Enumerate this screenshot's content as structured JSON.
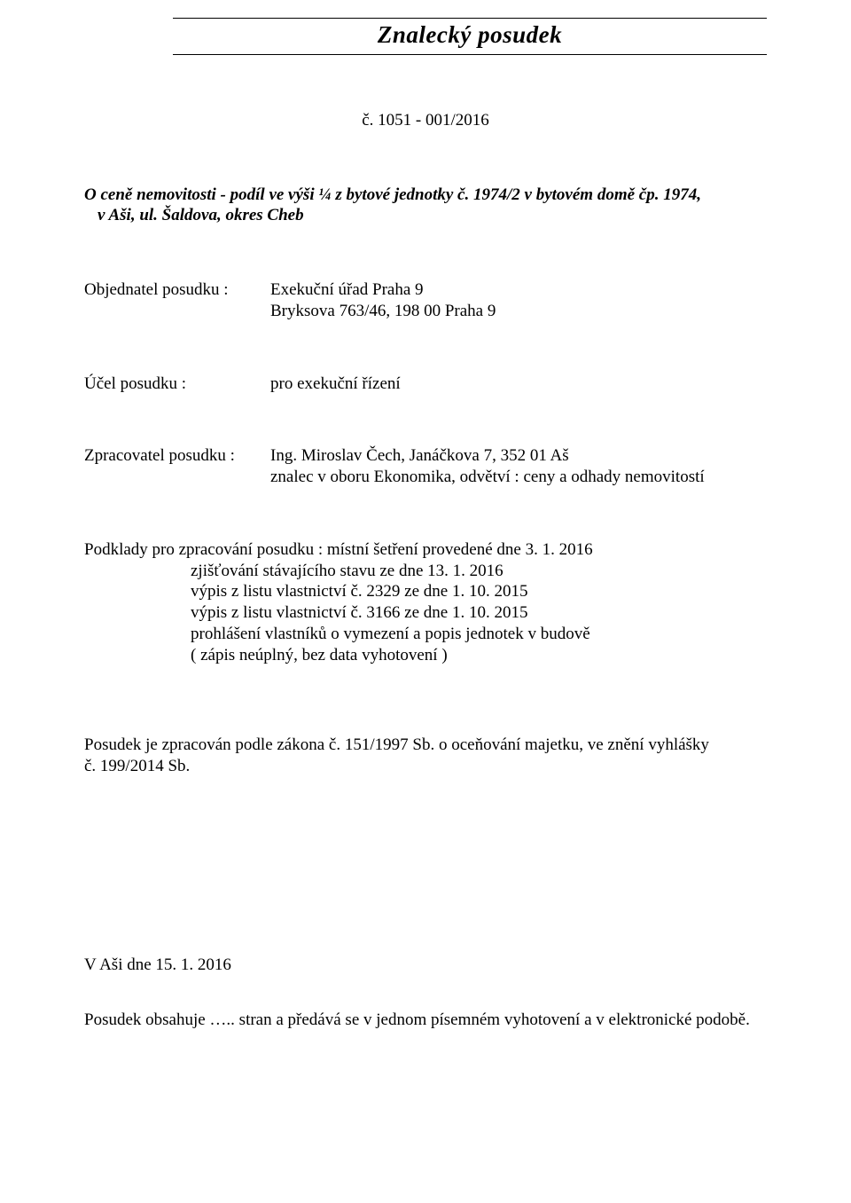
{
  "title": "Znalecký posudek",
  "refnum": "č. 1051 - 001/2016",
  "subject_line1": "O ceně nemovitosti  - podíl ve výši ¼ z bytové jednotky č. 1974/2 v bytovém domě čp. 1974,",
  "subject_line2": "v Aši, ul. Šaldova, okres Cheb",
  "objednatel": {
    "label": "Objednatel posudku :",
    "line1": "Exekuční úřad Praha 9",
    "line2": "Bryksova 763/46, 198 00 Praha 9"
  },
  "ucel": {
    "label": "Účel posudku :",
    "value": "pro exekuční řízení"
  },
  "zpracovatel": {
    "label": "Zpracovatel posudku :",
    "line1": "Ing. Miroslav Čech, Janáčkova 7,  352 01  Aš",
    "line2": "znalec v oboru Ekonomika, odvětví : ceny a odhady nemovitostí"
  },
  "podklady": {
    "lead": "Podklady pro zpracování posudku : místní šetření provedené dne 3. 1. 2016",
    "items": [
      "zjišťování stávajícího stavu ze dne 13. 1. 2016",
      "výpis z listu vlastnictví č. 2329 ze dne 1. 10. 2015",
      "výpis z listu vlastnictví č. 3166 ze dne 1. 10. 2015",
      "prohlášení vlastníků o vymezení a popis jednotek v budově",
      "( zápis neúplný, bez data vyhotovení )"
    ]
  },
  "law_line1": "Posudek je zpracován podle zákona č. 151/1997 Sb. o oceňování majetku, ve znění vyhlášky",
  "law_line2": "č. 199/2014 Sb.",
  "date": "V Aši dne 15. 1. 2016",
  "footer": "Posudek obsahuje …..  stran a předává se v jednom písemném vyhotovení a v elektronické podobě."
}
